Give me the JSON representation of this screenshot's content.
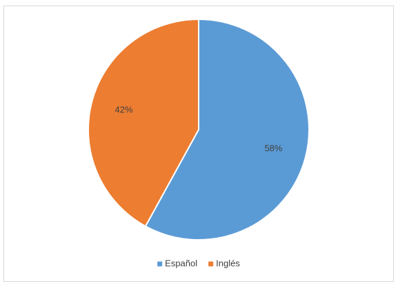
{
  "chart_data": {
    "type": "pie",
    "categories": [
      "Español",
      "Inglés"
    ],
    "values": [
      58,
      42
    ],
    "value_labels": [
      "58%",
      "42%"
    ],
    "colors": [
      "#5b9bd5",
      "#ed7d31"
    ],
    "legend": "bottom"
  }
}
